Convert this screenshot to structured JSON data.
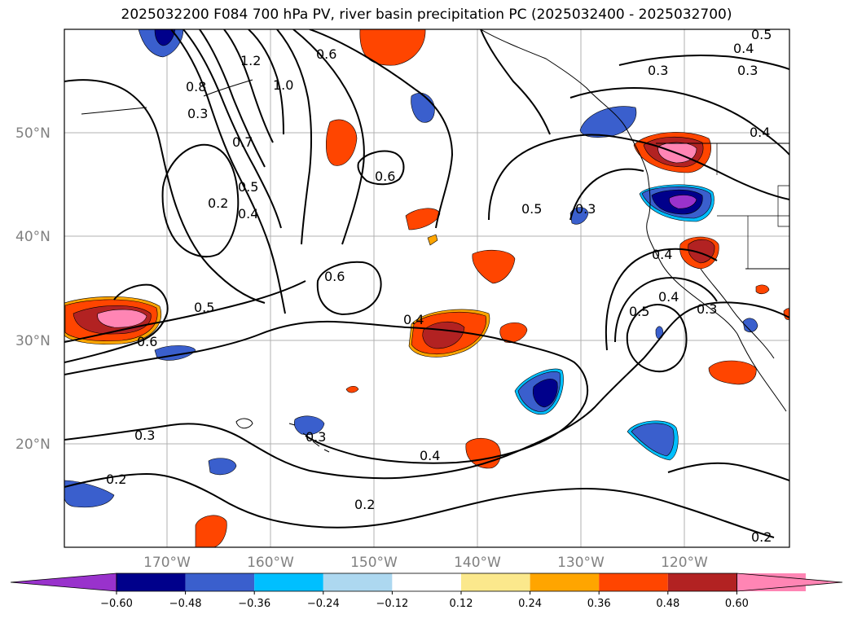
{
  "title": "2025032200 F084 700 hPa PV, river basin precipitation PC (2025032400 - 2025032700)",
  "lat_labels": [
    "50°N",
    "40°N",
    "30°N",
    "20°N"
  ],
  "lon_labels": [
    "170°W",
    "160°W",
    "150°W",
    "140°W",
    "130°W",
    "120°W"
  ],
  "contour_labels": [
    "0.5",
    "0.4",
    "0.3",
    "0.6",
    "0.8",
    "1.2",
    "1.0",
    "0.7",
    "0.5",
    "0.4",
    "0.2",
    "0.3",
    "0.6",
    "0.6",
    "0.5",
    "0.6",
    "0.4",
    "0.3",
    "0.2",
    "0.3",
    "0.4",
    "0.2",
    "0.5",
    "0.3",
    "0.4",
    "0.4",
    "0.5",
    "0.4",
    "0.3",
    "0.3",
    "0.2"
  ],
  "colorbar": {
    "ticks": [
      "−0.60",
      "−0.48",
      "−0.36",
      "−0.24",
      "−0.12",
      "0.12",
      "0.24",
      "0.36",
      "0.48",
      "0.60"
    ],
    "colors": [
      "#9932cc",
      "#00008b",
      "#3a5fcd",
      "#00bfff",
      "#add8f0",
      "#ffffff",
      "#fbe88c",
      "#ffa500",
      "#ff4500",
      "#b22222",
      "#ff85b4",
      "#ff85b4"
    ]
  },
  "colors": {
    "positive_strong": "#ff85b4",
    "positive_high": "#b22222",
    "positive_mid": "#ff4500",
    "positive_low": "#ffa500",
    "positive_min": "#fbe88c",
    "negative_strong": "#9932cc",
    "negative_high": "#00008b",
    "negative_mid": "#3a5fcd",
    "negative_low": "#00bfff",
    "negative_min": "#add8f0"
  }
}
